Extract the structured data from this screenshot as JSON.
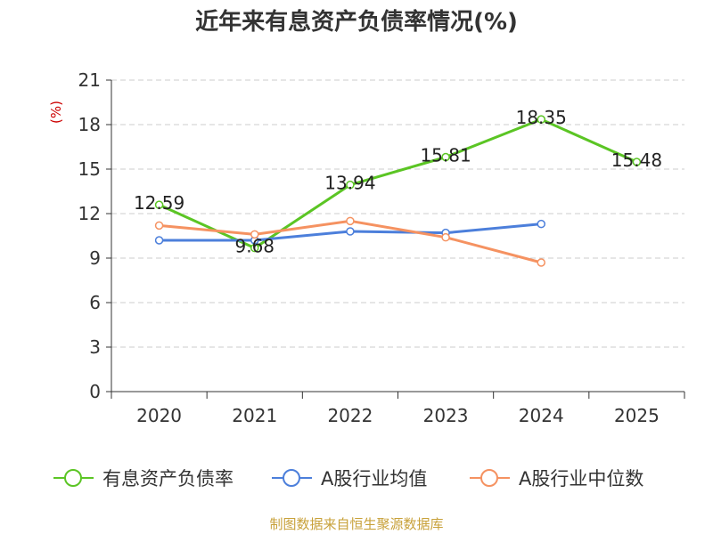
{
  "chart_data": {
    "type": "line",
    "title": "近年来有息资产负债率情况(%)",
    "ylabel": "(%)",
    "categories": [
      "2020",
      "2021",
      "2022",
      "2023",
      "2024",
      "2025"
    ],
    "ylim": [
      0,
      21
    ],
    "yticks": [
      0,
      3,
      6,
      9,
      12,
      15,
      18,
      21
    ],
    "grid": true,
    "legend_position": "bottom",
    "series": [
      {
        "name": "有息资产负债率",
        "color": "#5bc524",
        "values": [
          12.59,
          9.68,
          13.94,
          15.81,
          18.35,
          15.48
        ],
        "labels": [
          "12.59",
          "9.68",
          "13.94",
          "15.81",
          "18.35",
          "15.48"
        ]
      },
      {
        "name": "A股行业均值",
        "color": "#4c7fdb",
        "values": [
          10.2,
          10.2,
          10.8,
          10.7,
          11.3,
          null
        ]
      },
      {
        "name": "A股行业中位数",
        "color": "#f59261",
        "values": [
          11.2,
          10.6,
          11.5,
          10.4,
          8.7,
          null
        ]
      }
    ]
  },
  "source": "制图数据来自恒生聚源数据库"
}
